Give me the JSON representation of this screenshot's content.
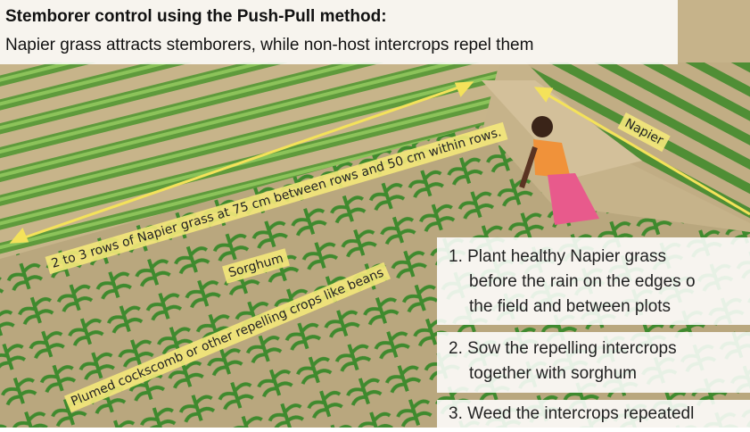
{
  "header": {
    "title": "Stemborer control using the Push-Pull method:",
    "subtitle": "Napier grass attracts stemborers, while non-host intercrops repel them"
  },
  "labels": {
    "napier": "Napier",
    "rows": "2 to 3 rows of Napier grass at 75 cm between rows and 50 cm within rows.",
    "sorghum": "Sorghum",
    "cockscomb": "Plumed cockscomb or other repelling crops like beans"
  },
  "steps": [
    {
      "lines": [
        "1. Plant healthy Napier grass",
        "before the rain on the edges o",
        "the field and between plots"
      ]
    },
    {
      "lines": [
        "2. Sow the repelling intercrops",
        "together with sorghum"
      ]
    },
    {
      "lines": [
        "3. Weed the intercrops repeatedl"
      ]
    }
  ]
}
